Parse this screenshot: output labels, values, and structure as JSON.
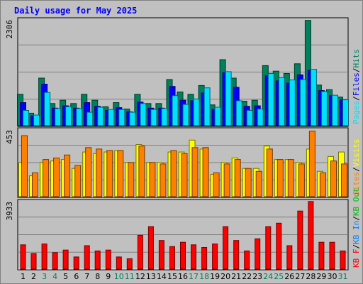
{
  "chart_data": {
    "type": "bar",
    "title": "Daily usage for May 2025",
    "days": [
      "1",
      "2",
      "3",
      "4",
      "5",
      "6",
      "7",
      "8",
      "9",
      "10",
      "11",
      "12",
      "13",
      "14",
      "15",
      "16",
      "17",
      "18",
      "19",
      "20",
      "21",
      "22",
      "23",
      "24",
      "25",
      "26",
      "27",
      "28",
      "29",
      "30",
      "31"
    ],
    "weekend_days": [
      "3",
      "4",
      "10",
      "11",
      "17",
      "18",
      "24",
      "25",
      "31"
    ],
    "colors": {
      "title": "#0000ff",
      "background": "#c0c0c0",
      "plot_bg": "#c0c0c0",
      "weekday": "#000000",
      "weekend": "#00805c",
      "hits": "#00805c",
      "files": "#0000ff",
      "pages": "#00e0ff",
      "visits": "#ffff00",
      "sites": "#ff8000",
      "kb_in": "#0080ff",
      "kb_out": "#00c000",
      "kb_f": "#ff0000"
    },
    "panels": [
      {
        "name": "hits-files-pages",
        "ymax_label": "2306",
        "ymax": 2306,
        "legend": [
          "Pages",
          "Files",
          "Hits"
        ],
        "legend_colors": [
          "#00e0ff",
          "#0000ff",
          "#00805c"
        ],
        "series": [
          {
            "name": "Hits",
            "color": "#00805c",
            "values": [
              680,
              270,
              1030,
              480,
              550,
              480,
              680,
              550,
              410,
              500,
              360,
              680,
              480,
              480,
              1000,
              730,
              680,
              870,
              450,
              1430,
              1030,
              530,
              550,
              1300,
              1180,
              1130,
              1340,
              2280,
              880,
              780,
              620
            ]
          },
          {
            "name": "Files",
            "color": "#0000ff",
            "values": [
              500,
              210,
              900,
              380,
              430,
              380,
              500,
              420,
              330,
              390,
              300,
              510,
              380,
              380,
              850,
              550,
              540,
              710,
              350,
              1150,
              830,
              420,
              430,
              1080,
              970,
              920,
              1100,
              1200,
              760,
              650,
              560
            ]
          },
          {
            "name": "Pages",
            "color": "#00e0ff",
            "values": [
              330,
              230,
              720,
              370,
              410,
              370,
              290,
              400,
              350,
              350,
              290,
              480,
              350,
              370,
              650,
              460,
              580,
              820,
              400,
              1170,
              540,
              330,
              360,
              1130,
              1040,
              990,
              1000,
              1220,
              740,
              660,
              560
            ]
          }
        ]
      },
      {
        "name": "sites-visits",
        "ymax_label": "453",
        "ymax": 453,
        "legend": [
          "Sites",
          "Visits"
        ],
        "legend_colors": [
          "#ff8000",
          "#ffff00"
        ],
        "series": [
          {
            "name": "Visits",
            "color": "#ffff00",
            "values": [
              230,
              140,
              230,
              240,
              250,
              190,
              300,
              290,
              300,
              310,
              230,
              350,
              230,
              230,
              300,
              300,
              380,
              320,
              150,
              230,
              260,
              190,
              190,
              340,
              250,
              250,
              230,
              320,
              170,
              270,
              300
            ]
          },
          {
            "name": "Sites",
            "color": "#ff8000",
            "values": [
              410,
              160,
              250,
              260,
              280,
              210,
              330,
              320,
              310,
              310,
              230,
              340,
              230,
              220,
              310,
              290,
              330,
              330,
              160,
              220,
              250,
              190,
              170,
              320,
              250,
              250,
              220,
              440,
              160,
              240,
              220
            ]
          }
        ]
      },
      {
        "name": "kbf",
        "ymax_label": "3933",
        "ymax": 3933,
        "legend": [
          "KB F",
          "KB In",
          "KB Out"
        ],
        "legend_colors": [
          "#ff0000",
          "#0080ff",
          "#00c000"
        ],
        "series": [
          {
            "name": "KB F",
            "color": "#ff0000",
            "values": [
              1400,
              900,
              1450,
              950,
              1100,
              700,
              1350,
              1050,
              1100,
              700,
              600,
              1950,
              2450,
              1650,
              1300,
              1550,
              1400,
              1250,
              1450,
              2450,
              1650,
              1050,
              1750,
              2450,
              2650,
              1350,
              3350,
              3900,
              1550,
              1550,
              1050
            ]
          }
        ]
      }
    ]
  }
}
